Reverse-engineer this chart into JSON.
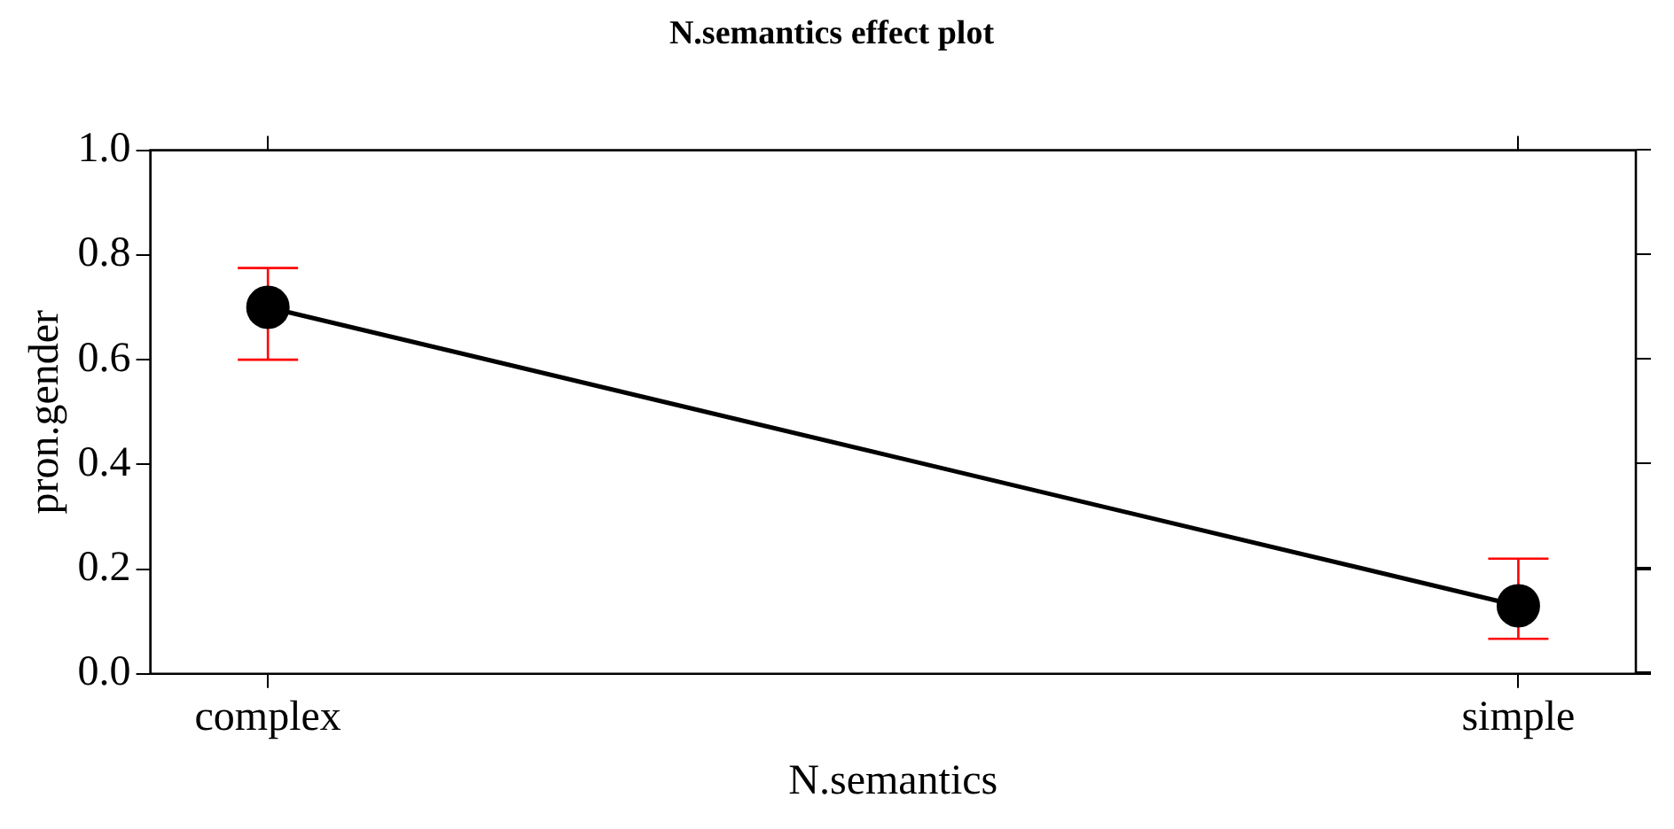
{
  "chart_data": {
    "type": "line",
    "title": "N.semantics effect plot",
    "xlabel": "N.semantics",
    "ylabel": "pron.gender",
    "categories": [
      "complex",
      "simple"
    ],
    "series": [
      {
        "color": "#000000",
        "values": [
          0.7,
          0.13
        ],
        "errors": [
          [
            0.6,
            0.775
          ],
          [
            0.067,
            0.22
          ]
        ]
      }
    ],
    "ylim": [
      0,
      1
    ],
    "yticks": [
      {
        "value": 0,
        "label": "0.0"
      },
      0.2,
      0.4,
      0.6,
      0.8,
      {
        "value": 1,
        "label": "1.0"
      }
    ],
    "grid": false,
    "legend": false,
    "marker": "circle",
    "line_style": "solid"
  }
}
